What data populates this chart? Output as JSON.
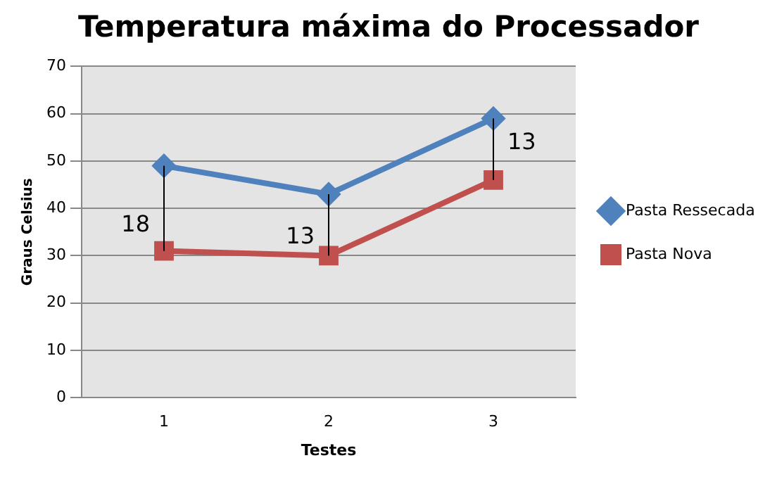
{
  "chart_data": {
    "type": "line",
    "title": "Temperatura máxima do Processador",
    "xlabel": "Testes",
    "ylabel": "Graus Celsius",
    "categories": [
      "1",
      "2",
      "3"
    ],
    "series": [
      {
        "name": "Pasta Ressecada",
        "color": "#4f81bd",
        "marker": "diamond",
        "values": [
          49,
          43,
          59
        ]
      },
      {
        "name": "Pasta Nova",
        "color": "#c0504d",
        "marker": "square",
        "values": [
          31,
          30,
          46
        ]
      }
    ],
    "ylim": [
      0,
      70
    ],
    "yticks": [
      0,
      10,
      20,
      30,
      40,
      50,
      60,
      70
    ],
    "grid": "y",
    "legend": "right",
    "annotations": [
      {
        "text": "18",
        "x": "1",
        "y": 49
      },
      {
        "text": "13",
        "x": "2",
        "y": 43
      },
      {
        "text": "13",
        "x": "3",
        "y": 59
      }
    ]
  }
}
